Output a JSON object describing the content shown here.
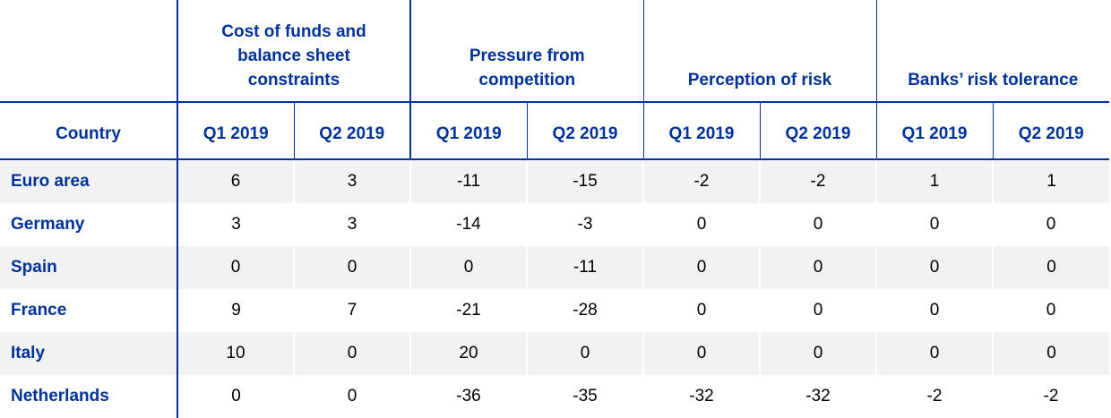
{
  "table": {
    "groups": [
      "Cost of funds and balance sheet constraints",
      "Pressure from competition",
      "Perception of risk",
      "Banks’ risk tolerance"
    ],
    "country_header": "Country",
    "quarters": [
      "Q1 2019",
      "Q2 2019"
    ],
    "rows": [
      {
        "country": "Euro area",
        "values": [
          "6",
          "3",
          "-11",
          "-15",
          "-2",
          "-2",
          "1",
          "1"
        ]
      },
      {
        "country": "Germany",
        "values": [
          "3",
          "3",
          "-14",
          "-3",
          "0",
          "0",
          "0",
          "0"
        ]
      },
      {
        "country": "Spain",
        "values": [
          "0",
          "0",
          "0",
          "-11",
          "0",
          "0",
          "0",
          "0"
        ]
      },
      {
        "country": "France",
        "values": [
          "9",
          "7",
          "-21",
          "-28",
          "0",
          "0",
          "0",
          "0"
        ]
      },
      {
        "country": "Italy",
        "values": [
          "10",
          "0",
          "20",
          "0",
          "0",
          "0",
          "0",
          "0"
        ]
      },
      {
        "country": "Netherlands",
        "values": [
          "0",
          "0",
          "-36",
          "-35",
          "-32",
          "-32",
          "-2",
          "-2"
        ]
      }
    ]
  },
  "colors": {
    "header_text": "#003299",
    "rule": "#003299",
    "shaded_row": "#f2f2f2"
  }
}
